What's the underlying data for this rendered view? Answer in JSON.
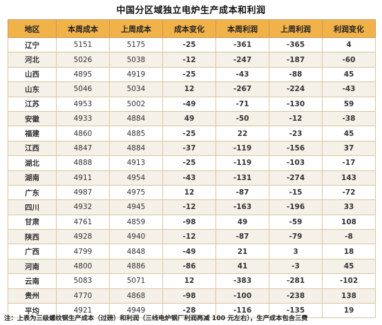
{
  "chart_data": {
    "type": "table",
    "title": "中国分区域独立电炉生产成本和利润",
    "columns": [
      "地区",
      "本周成本",
      "上周成本",
      "成本变化",
      "本周利润",
      "上周利润",
      "利润变化"
    ],
    "rows": [
      [
        "辽宁",
        5151,
        5175,
        -25,
        -361,
        -365,
        4
      ],
      [
        "河北",
        5026,
        5038,
        -12,
        -247,
        -187,
        -60
      ],
      [
        "山西",
        4895,
        4919,
        -25,
        -43,
        -88,
        45
      ],
      [
        "山东",
        5046,
        5034,
        12,
        -267,
        -224,
        -43
      ],
      [
        "江苏",
        4953,
        5002,
        -49,
        -71,
        -130,
        59
      ],
      [
        "安徽",
        4933,
        4884,
        49,
        -50,
        -12,
        -38
      ],
      [
        "福建",
        4860,
        4885,
        -25,
        22,
        -23,
        45
      ],
      [
        "江西",
        4847,
        4884,
        -37,
        -119,
        -156,
        37
      ],
      [
        "湖北",
        4888,
        4913,
        -25,
        -119,
        -103,
        -17
      ],
      [
        "湖南",
        4911,
        4954,
        -43,
        -131,
        -274,
        143
      ],
      [
        "广东",
        4987,
        4975,
        12,
        -87,
        -15,
        -72
      ],
      [
        "四川",
        4932,
        4945,
        -12,
        -163,
        -196,
        33
      ],
      [
        "甘肃",
        4761,
        4859,
        -98,
        49,
        -59,
        108
      ],
      [
        "陕西",
        4928,
        4940,
        -12,
        -87,
        -79,
        -8
      ],
      [
        "广西",
        4799,
        4848,
        -49,
        21,
        3,
        18
      ],
      [
        "河南",
        4800,
        4886,
        -86,
        41,
        -3,
        45
      ],
      [
        "云南",
        5083,
        5071,
        12,
        -383,
        -281,
        -102
      ],
      [
        "贵州",
        4770,
        4868,
        -98,
        -100,
        -238,
        138
      ],
      [
        "平均",
        4921,
        4949,
        -28,
        -116,
        -135,
        19
      ]
    ],
    "colors": {
      "header_bg": "#f2b24a",
      "positive": "#e8161a",
      "negative": "#26a63c",
      "stripe": "#f6f1e8"
    }
  },
  "note": "注：上表为三级螺纹钢生产成本（过磅）和利润（三线电炉钢厂利润再减 100 元左右），生产成本包含三费"
}
